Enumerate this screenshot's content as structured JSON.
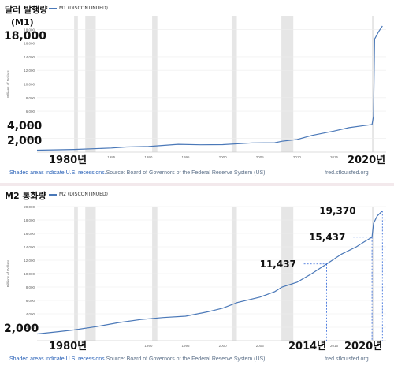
{
  "chart_data": [
    {
      "type": "line",
      "title": "달러 발행량",
      "legend": "M1 (DISCONTINUED)",
      "ylabel": "Billions of Dollars",
      "xlim": [
        1975,
        2022
      ],
      "ylim": [
        0,
        20000
      ],
      "yticks": [
        "2,000",
        "4,000",
        "6,000",
        "8,000",
        "10,000",
        "12,000",
        "14,000",
        "16,000",
        "18,000"
      ],
      "xticks": [
        "1985",
        "1990",
        "1995",
        "2000",
        "2005",
        "2010",
        "2015"
      ],
      "recessions": [
        [
          1980.0,
          1980.5
        ],
        [
          1981.5,
          1982.9
        ],
        [
          1990.5,
          1991.2
        ],
        [
          2001.2,
          2001.9
        ],
        [
          2007.9,
          2009.5
        ],
        [
          2020.1,
          2020.4
        ]
      ],
      "series": [
        {
          "values": [
            [
              1975,
              290
            ],
            [
              1980,
              390
            ],
            [
              1985,
              600
            ],
            [
              1987,
              750
            ],
            [
              1990,
              820
            ],
            [
              1994,
              1150
            ],
            [
              1997,
              1080
            ],
            [
              2000,
              1100
            ],
            [
              2004,
              1350
            ],
            [
              2007,
              1370
            ],
            [
              2008,
              1600
            ],
            [
              2010,
              1850
            ],
            [
              2012,
              2450
            ],
            [
              2015,
              3100
            ],
            [
              2017,
              3600
            ],
            [
              2019,
              3900
            ],
            [
              2020.1,
              4050
            ],
            [
              2020.3,
              5300
            ],
            [
              2020.45,
              16600
            ],
            [
              2021,
              17700
            ],
            [
              2021.5,
              18500
            ]
          ],
          "color": "#4a78b8"
        }
      ],
      "annotations": [
        {
          "text": "(M1)"
        },
        {
          "text": "18,000"
        },
        {
          "text": "4,000"
        },
        {
          "text": "2,000"
        },
        {
          "text": "1980년"
        },
        {
          "text": "2020년"
        }
      ],
      "footer": {
        "recession_note": "Shaded areas indicate U.S. recessions.",
        "source": "Source: Board of Governors of the Federal Reserve System (US)",
        "site": "fred.stlouisfed.org"
      }
    },
    {
      "type": "line",
      "title": "M2 통화량",
      "legend": "M2 (DISCONTINUED)",
      "ylabel": "Billions of Dollars",
      "xlim": [
        1975,
        2022
      ],
      "ylim": [
        0,
        20000
      ],
      "yticks": [
        "2,000",
        "4,000",
        "6,000",
        "8,000",
        "10,000",
        "12,000",
        "14,000",
        "16,000",
        "18,000",
        "20,000"
      ],
      "xticks": [
        "1990",
        "1995",
        "2000",
        "2005",
        "2015"
      ],
      "recessions": [
        [
          1980.0,
          1980.5
        ],
        [
          1981.5,
          1982.9
        ],
        [
          1990.5,
          1991.2
        ],
        [
          2001.2,
          2001.9
        ],
        [
          2007.9,
          2009.5
        ],
        [
          2020.1,
          2020.4
        ]
      ],
      "series": [
        {
          "values": [
            [
              1975,
              1000
            ],
            [
              1978,
              1350
            ],
            [
              1980,
              1600
            ],
            [
              1983,
              2100
            ],
            [
              1986,
              2700
            ],
            [
              1989,
              3150
            ],
            [
              1992,
              3450
            ],
            [
              1995,
              3650
            ],
            [
              1998,
              4300
            ],
            [
              2000,
              4850
            ],
            [
              2002,
              5700
            ],
            [
              2005,
              6500
            ],
            [
              2007,
              7300
            ],
            [
              2008,
              8000
            ],
            [
              2010,
              8700
            ],
            [
              2012,
              10000
            ],
            [
              2014,
              11437
            ],
            [
              2016,
              12900
            ],
            [
              2018,
              14000
            ],
            [
              2019,
              14700
            ],
            [
              2020.1,
              15437
            ],
            [
              2020.3,
              17500
            ],
            [
              2020.8,
              18600
            ],
            [
              2021.5,
              19370
            ]
          ],
          "color": "#4a78b8"
        }
      ],
      "annotations": [
        {
          "text": "2,000"
        },
        {
          "text": "11,437",
          "value": 11437,
          "x": 2014
        },
        {
          "text": "15,437",
          "value": 15437,
          "x": 2020.1
        },
        {
          "text": "19,370",
          "value": 19370,
          "x": 2021.5
        },
        {
          "text": "1980년"
        },
        {
          "text": "2014년"
        },
        {
          "text": "2020년"
        }
      ],
      "footer": {
        "recession_note": "Shaded areas indicate U.S. recessions.",
        "source": "Source: Board of Governors of the Federal Reserve System (US)",
        "site": "fred.stlouisfed.org"
      }
    }
  ]
}
